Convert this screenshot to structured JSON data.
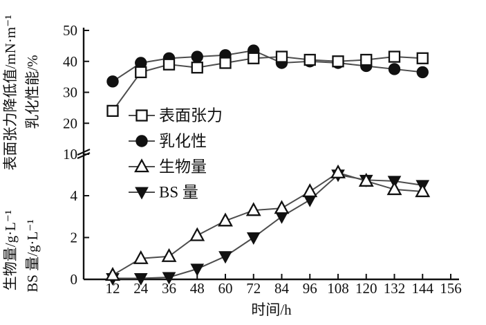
{
  "figure": {
    "background": "#ffffff",
    "line_color": "#4d4d4d",
    "ink_color": "#111111"
  },
  "chart_data": {
    "type": "line",
    "title": "",
    "xlabel": "时间/h",
    "x_ticks": [
      12,
      24,
      36,
      48,
      60,
      72,
      84,
      96,
      108,
      120,
      132,
      144,
      156
    ],
    "x": [
      12,
      24,
      36,
      48,
      60,
      72,
      84,
      96,
      108,
      120,
      132,
      144
    ],
    "y_axis": {
      "broken": true,
      "top": {
        "range": [
          10,
          50
        ],
        "ticks": [
          50,
          40,
          30,
          20,
          10
        ],
        "axis_label_outer": "表面张力降低值/mN·m⁻¹",
        "axis_label_inner": "乳化性能/%"
      },
      "bottom": {
        "range": [
          0,
          6
        ],
        "ticks": [
          4,
          2,
          0
        ],
        "axis_label_outer": "生物量/g·L⁻¹",
        "axis_label_inner": "BS 量/g·L⁻¹"
      }
    },
    "grid": false,
    "legend_position": "upper-left-inside",
    "series": [
      {
        "key": "surface-tension",
        "name": "表面张力",
        "marker": "open-square",
        "scale": "top",
        "values": [
          24,
          36.5,
          39,
          38,
          39.5,
          41,
          41.5,
          40.5,
          40,
          40.5,
          41.5,
          41
        ]
      },
      {
        "key": "emulsification",
        "name": "乳化性",
        "marker": "filled-circle",
        "scale": "top",
        "values": [
          33.5,
          39.5,
          41,
          41.5,
          42,
          43.5,
          39.5,
          40,
          39.5,
          38.5,
          37.5,
          36.5
        ]
      },
      {
        "key": "biomass",
        "name": "生物量",
        "marker": "open-triangle-up",
        "scale": "bottom",
        "values": [
          0.2,
          1.0,
          1.1,
          2.1,
          2.8,
          3.3,
          3.4,
          4.2,
          5.1,
          4.7,
          4.3,
          4.2
        ]
      },
      {
        "key": "bs-amount",
        "name": "BS 量",
        "marker": "filled-triangle-down",
        "scale": "bottom",
        "values": [
          0.05,
          0.05,
          0.1,
          0.5,
          1.1,
          2.0,
          3.0,
          3.8,
          5.0,
          4.75,
          4.7,
          4.5
        ]
      }
    ]
  }
}
